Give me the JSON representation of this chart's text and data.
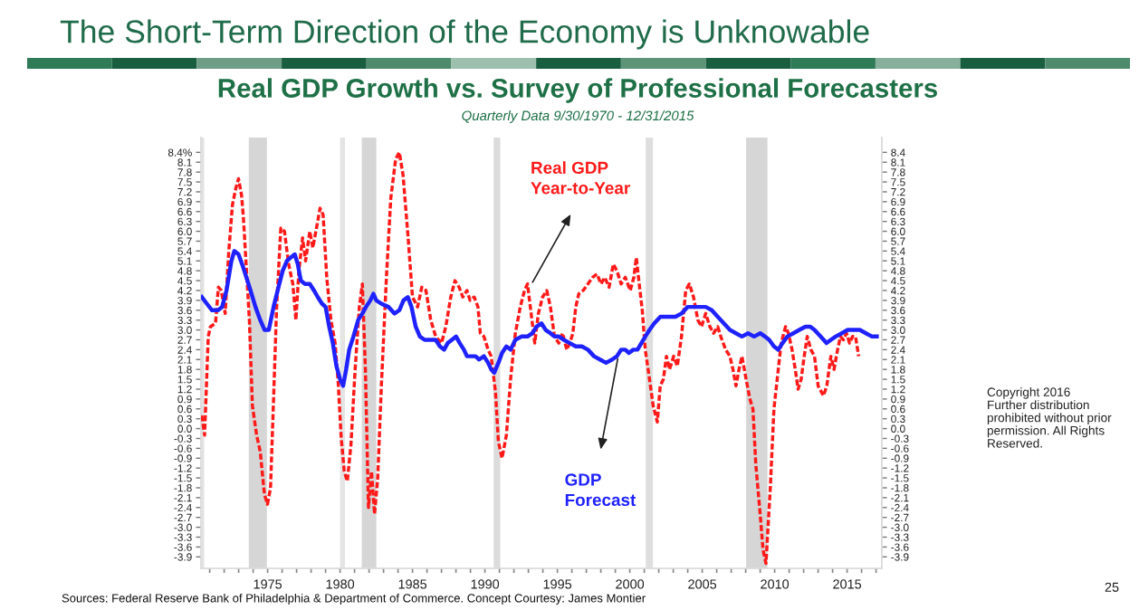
{
  "chart_data": {
    "type": "line",
    "title": "Real GDP Growth vs. Survey of Professional Forecasters",
    "subtitle": "Quarterly Data 9/30/1970 - 12/31/2015",
    "annotations": [
      "The Short-Term Direction of the Economy is Unknowable",
      "Sources: Federal Reserve Bank of Philadelphia & Department of Commerce. Concept Courtesy: James Montier",
      "Copyright 2016\nFurther distribution\nprohibited without prior\npermission. All Rights\nReserved.",
      "25"
    ],
    "series": [
      {
        "name": "Real GDP Year-to-Year",
        "color": "#ff1a1a",
        "line_style": "dashed",
        "x": [
          1970.45,
          1970.65,
          1970.9,
          1971.05,
          1971.4,
          1971.6,
          1971.8,
          1972.07,
          1972.32,
          1972.57,
          1972.8,
          1972.99,
          1973.2,
          1973.33,
          1973.74,
          1973.95,
          1974.24,
          1974.49,
          1974.78,
          1974.99,
          1975.2,
          1975.41,
          1975.62,
          1975.91,
          1976.16,
          1976.45,
          1976.74,
          1976.95,
          1977.16,
          1977.41,
          1977.62,
          1977.91,
          1978.12,
          1978.33,
          1978.62,
          1978.83,
          1979.08,
          1979.37,
          1979.66,
          1979.87,
          1980.08,
          1980.29,
          1980.5,
          1980.75,
          1981.04,
          1981.33,
          1981.54,
          1981.75,
          1981.96,
          1982.17,
          1982.38,
          1982.6,
          1982.85,
          1983.2,
          1983.5,
          1983.84,
          1984.09,
          1984.35,
          1984.68,
          1985.0,
          1985.35,
          1985.64,
          1985.93,
          1986.26,
          1986.6,
          1987.0,
          1987.3,
          1987.64,
          1987.93,
          1988.22,
          1988.47,
          1988.76,
          1988.97,
          1989.26,
          1989.52,
          1989.68,
          1989.93,
          1990.22,
          1990.43,
          1990.73,
          1990.93,
          1991.18,
          1991.48,
          1991.77,
          1992.1,
          1992.44,
          1992.73,
          1992.94,
          1993.19,
          1993.44,
          1993.69,
          1993.98,
          1994.27,
          1994.52,
          1994.8,
          1995.1,
          1995.36,
          1995.65,
          1995.86,
          1996.07,
          1996.27,
          1996.48,
          1996.78,
          1997.11,
          1997.44,
          1997.73,
          1998.02,
          1998.27,
          1998.57,
          1998.86,
          1999.11,
          1999.4,
          1999.69,
          2000.03,
          2000.28,
          2000.45,
          2000.65,
          2000.86,
          2001.07,
          2001.36,
          2001.61,
          2001.9,
          2002.1,
          2002.32,
          2002.53,
          2002.74,
          2003.03,
          2003.28,
          2003.57,
          2003.86,
          2004.11,
          2004.4,
          2004.7,
          2004.95,
          2005.24,
          2005.53,
          2005.78,
          2006.07,
          2006.28,
          2006.62,
          2006.91,
          2007.12,
          2007.33,
          2007.54,
          2007.74,
          2008.03,
          2008.29,
          2008.5,
          2008.7,
          2009.0,
          2009.2,
          2009.4,
          2009.7,
          2009.95,
          2010.25,
          2010.45,
          2010.75,
          2010.95,
          2011.2,
          2011.42,
          2011.62,
          2011.83,
          2012.04,
          2012.25,
          2012.5,
          2012.75,
          2013.0,
          2013.37,
          2013.6,
          2013.88,
          2014.1,
          2014.3,
          2014.54,
          2014.75,
          2014.96,
          2015.17,
          2015.38,
          2015.58,
          2015.8
        ],
        "values": [
          0.4,
          -0.2,
          2.8,
          3.1,
          3.2,
          4.3,
          4.2,
          3.5,
          5.4,
          6.8,
          7.3,
          7.6,
          7.1,
          6.4,
          3.3,
          0.7,
          -0.2,
          -0.7,
          -2.0,
          -2.3,
          -1.8,
          0.9,
          3.7,
          6.1,
          6.0,
          5.0,
          4.4,
          3.3,
          4.8,
          5.8,
          5.1,
          6.0,
          5.5,
          6.0,
          6.7,
          6.5,
          4.6,
          3.3,
          2.6,
          1.4,
          -0.3,
          -1.3,
          -1.6,
          -0.5,
          1.8,
          3.7,
          4.4,
          1.8,
          -2.4,
          -1.3,
          -2.6,
          -1.5,
          1.3,
          4.6,
          7.0,
          8.2,
          8.4,
          7.7,
          5.9,
          4.0,
          3.7,
          4.3,
          4.2,
          3.3,
          2.8,
          2.6,
          3.1,
          4.0,
          4.5,
          4.3,
          4.0,
          4.2,
          3.9,
          4.0,
          3.7,
          2.9,
          2.8,
          2.4,
          2.2,
          1.1,
          -0.4,
          -0.9,
          -0.2,
          1.5,
          2.9,
          3.7,
          4.2,
          4.4,
          3.5,
          2.6,
          3.5,
          4.0,
          4.2,
          3.7,
          2.8,
          2.6,
          2.9,
          2.4,
          2.6,
          2.9,
          3.7,
          4.1,
          4.2,
          4.4,
          4.6,
          4.7,
          4.4,
          4.6,
          4.3,
          5.0,
          4.8,
          4.4,
          4.6,
          4.2,
          4.6,
          5.2,
          4.4,
          3.6,
          2.4,
          1.5,
          0.7,
          0.2,
          1.3,
          1.5,
          2.2,
          1.8,
          2.2,
          1.9,
          2.8,
          4.2,
          4.4,
          4.0,
          3.3,
          3.1,
          3.5,
          3.1,
          2.9,
          3.1,
          2.8,
          2.4,
          2.2,
          1.8,
          1.3,
          1.8,
          2.2,
          1.5,
          0.9,
          0.6,
          -1.1,
          -2.6,
          -3.7,
          -4.1,
          -1.8,
          0.6,
          1.8,
          2.6,
          3.1,
          2.9,
          2.4,
          1.8,
          1.2,
          1.5,
          2.2,
          2.8,
          2.4,
          2.2,
          1.3,
          1.0,
          1.3,
          2.2,
          1.8,
          2.3,
          2.8,
          2.7,
          2.9,
          2.6,
          2.8,
          2.8,
          2.2
        ]
      },
      {
        "name": "GDP Forecast",
        "color": "#1f22ff",
        "line_style": "solid",
        "x": [
          1970.45,
          1970.8,
          1971.16,
          1971.58,
          1971.86,
          1972.16,
          1972.5,
          1972.7,
          1972.99,
          1973.24,
          1973.53,
          1973.82,
          1974.16,
          1974.49,
          1974.79,
          1975.08,
          1975.41,
          1975.75,
          1976.04,
          1976.33,
          1976.58,
          1976.87,
          1977.08,
          1977.29,
          1977.58,
          1977.91,
          1978.2,
          1978.46,
          1978.75,
          1979.0,
          1979.25,
          1979.5,
          1979.75,
          1980.0,
          1980.21,
          1980.42,
          1980.63,
          1980.92,
          1981.25,
          1981.54,
          1981.79,
          1982.09,
          1982.3,
          1982.5,
          1982.84,
          1983.34,
          1983.76,
          1984.09,
          1984.38,
          1984.68,
          1984.93,
          1985.22,
          1985.51,
          1985.84,
          1986.26,
          1986.6,
          1986.89,
          1987.18,
          1987.43,
          1987.72,
          1988.01,
          1988.26,
          1988.55,
          1988.76,
          1989.06,
          1989.35,
          1989.6,
          1989.93,
          1990.22,
          1990.43,
          1990.64,
          1990.93,
          1991.18,
          1991.48,
          1991.77,
          1992.1,
          1992.52,
          1992.94,
          1993.27,
          1993.56,
          1993.9,
          1994.19,
          1994.52,
          1994.8,
          1995.1,
          1995.44,
          1995.86,
          1996.27,
          1996.69,
          1997.11,
          1997.53,
          1997.94,
          1998.36,
          1998.78,
          1999.11,
          1999.4,
          1999.69,
          1999.94,
          2000.24,
          2000.53,
          2000.8,
          2001.07,
          2001.36,
          2001.69,
          2002.11,
          2002.53,
          2003.15,
          2003.57,
          2003.99,
          2004.41,
          2004.82,
          2005.24,
          2005.66,
          2006.07,
          2006.49,
          2006.91,
          2007.33,
          2007.74,
          2008.16,
          2008.58,
          2009.0,
          2009.33,
          2009.62,
          2009.95,
          2010.25,
          2010.54,
          2010.87,
          2011.29,
          2011.7,
          2012.12,
          2012.46,
          2012.75,
          2013.17,
          2013.58,
          2013.88,
          2014.21,
          2014.63,
          2015.04,
          2015.46,
          2015.88,
          2016.3,
          2016.72,
          2017.05
        ],
        "values": [
          4.0,
          3.8,
          3.6,
          3.6,
          3.7,
          4.2,
          5.1,
          5.4,
          5.3,
          5.0,
          4.6,
          4.2,
          3.7,
          3.3,
          3.0,
          3.0,
          3.7,
          4.3,
          4.8,
          5.1,
          5.2,
          5.3,
          5.0,
          4.5,
          4.4,
          4.4,
          4.2,
          4.0,
          3.8,
          3.7,
          3.1,
          2.6,
          1.9,
          1.5,
          1.3,
          1.8,
          2.4,
          2.8,
          3.3,
          3.5,
          3.7,
          3.9,
          4.1,
          3.9,
          3.8,
          3.7,
          3.5,
          3.6,
          3.9,
          4.0,
          3.7,
          3.1,
          2.8,
          2.7,
          2.7,
          2.7,
          2.5,
          2.4,
          2.6,
          2.7,
          2.8,
          2.6,
          2.4,
          2.2,
          2.2,
          2.2,
          2.1,
          2.2,
          2.0,
          1.8,
          1.7,
          2.0,
          2.3,
          2.5,
          2.4,
          2.7,
          2.8,
          2.8,
          2.9,
          3.1,
          3.2,
          3.0,
          2.9,
          2.8,
          2.8,
          2.7,
          2.6,
          2.5,
          2.5,
          2.4,
          2.2,
          2.1,
          2.0,
          2.1,
          2.2,
          2.4,
          2.4,
          2.3,
          2.4,
          2.4,
          2.6,
          2.8,
          3.0,
          3.2,
          3.4,
          3.4,
          3.4,
          3.5,
          3.7,
          3.7,
          3.7,
          3.7,
          3.6,
          3.4,
          3.2,
          3.0,
          2.9,
          2.8,
          2.9,
          2.8,
          2.9,
          2.8,
          2.7,
          2.5,
          2.4,
          2.6,
          2.8,
          2.9,
          3.0,
          3.1,
          3.1,
          3.0,
          2.8,
          2.6,
          2.7,
          2.8,
          2.9,
          3.0,
          3.0,
          3.0,
          2.9,
          2.8,
          2.8
        ]
      }
    ],
    "xlim": [
      1970.4,
      2017.4
    ],
    "xticks": [
      {
        "value": 1971,
        "label": null
      },
      {
        "value": 1972,
        "label": null
      },
      {
        "value": 1973,
        "label": null
      },
      {
        "value": 1974,
        "label": null
      },
      1975,
      {
        "value": 1976,
        "label": null
      },
      {
        "value": 1977,
        "label": null
      },
      {
        "value": 1978,
        "label": null
      },
      {
        "value": 1979,
        "label": null
      },
      1980,
      {
        "value": 1981,
        "label": null
      },
      {
        "value": 1982,
        "label": null
      },
      {
        "value": 1983,
        "label": null
      },
      {
        "value": 1984,
        "label": null
      },
      1985,
      {
        "value": 1986,
        "label": null
      },
      {
        "value": 1987,
        "label": null
      },
      {
        "value": 1988,
        "label": null
      },
      {
        "value": 1989,
        "label": null
      },
      1990,
      {
        "value": 1991,
        "label": null
      },
      {
        "value": 1992,
        "label": null
      },
      {
        "value": 1993,
        "label": null
      },
      {
        "value": 1994,
        "label": null
      },
      1995,
      {
        "value": 1996,
        "label": null
      },
      {
        "value": 1997,
        "label": null
      },
      {
        "value": 1998,
        "label": null
      },
      {
        "value": 1999,
        "label": null
      },
      2000,
      {
        "value": 2001,
        "label": null
      },
      {
        "value": 2002,
        "label": null
      },
      {
        "value": 2003,
        "label": null
      },
      {
        "value": 2004,
        "label": null
      },
      2005,
      {
        "value": 2006,
        "label": null
      },
      {
        "value": 2007,
        "label": null
      },
      {
        "value": 2008,
        "label": null
      },
      {
        "value": 2009,
        "label": null
      },
      2010,
      {
        "value": 2011,
        "label": null
      },
      {
        "value": 2012,
        "label": null
      },
      {
        "value": 2013,
        "label": null
      },
      {
        "value": 2014,
        "label": null
      },
      2015,
      {
        "value": 2016,
        "label": null
      },
      {
        "value": 2017,
        "label": null
      }
    ],
    "ylim": [
      -4.25,
      8.85
    ],
    "yticks": [
      -3.9,
      -3.6,
      -3.3,
      {
        "value": -3,
        "label": "-3.0"
      },
      -2.7,
      -2.4,
      -2.1,
      -1.8,
      -1.5,
      -1.2,
      -0.9,
      -0.6,
      -0.3,
      {
        "value": 0,
        "label": "0.0"
      },
      0.3,
      0.6,
      0.9,
      1.2,
      1.5,
      1.8,
      2.1,
      2.4,
      2.7,
      {
        "value": 3,
        "label": "3.0"
      },
      3.3,
      3.6,
      3.9,
      4.2,
      4.5,
      4.8,
      5.1,
      5.4,
      5.7,
      {
        "value": 6,
        "label": "6.0"
      },
      6.3,
      6.6,
      6.9,
      7.2,
      7.5,
      7.8,
      8.1,
      {
        "value": 8.4,
        "label": "8.4%"
      }
    ],
    "y2lim": [
      -4.25,
      8.85
    ],
    "y2ticks": [
      -3.9,
      -3.6,
      -3.3,
      {
        "value": -3,
        "label": "-3.0"
      },
      -2.7,
      -2.4,
      -2.1,
      -1.8,
      -1.5,
      -1.2,
      -0.9,
      -0.6,
      -0.3,
      {
        "value": 0,
        "label": "0.0"
      },
      0.3,
      0.6,
      0.9,
      1.2,
      1.5,
      1.8,
      2.1,
      2.4,
      2.7,
      {
        "value": 3,
        "label": "3.0"
      },
      3.3,
      3.6,
      3.9,
      4.2,
      4.5,
      4.8,
      5.1,
      5.4,
      5.7,
      {
        "value": 6,
        "label": "6.0"
      },
      6.3,
      6.6,
      6.9,
      7.2,
      7.5,
      7.8,
      8.1,
      8.4
    ],
    "bands": [
      {
        "axis": "x",
        "from": 1970.4,
        "to": 1970.62,
        "color": "#e2e2e2"
      },
      {
        "axis": "x",
        "from": 1973.7,
        "to": 1974.95,
        "color": "#d6d6d6"
      },
      {
        "axis": "x",
        "from": 1980.0,
        "to": 1980.34,
        "color": "#e4e4e4"
      },
      {
        "axis": "x",
        "from": 1981.5,
        "to": 1982.5,
        "color": "#d6d6d6"
      },
      {
        "axis": "x",
        "from": 1990.6,
        "to": 1991.06,
        "color": "#dcdcdc"
      },
      {
        "axis": "x",
        "from": 2001.1,
        "to": 2001.6,
        "color": "#dedede"
      },
      {
        "axis": "x",
        "from": 2008.03,
        "to": 2009.5,
        "color": "#d6d6d6"
      }
    ]
  }
}
